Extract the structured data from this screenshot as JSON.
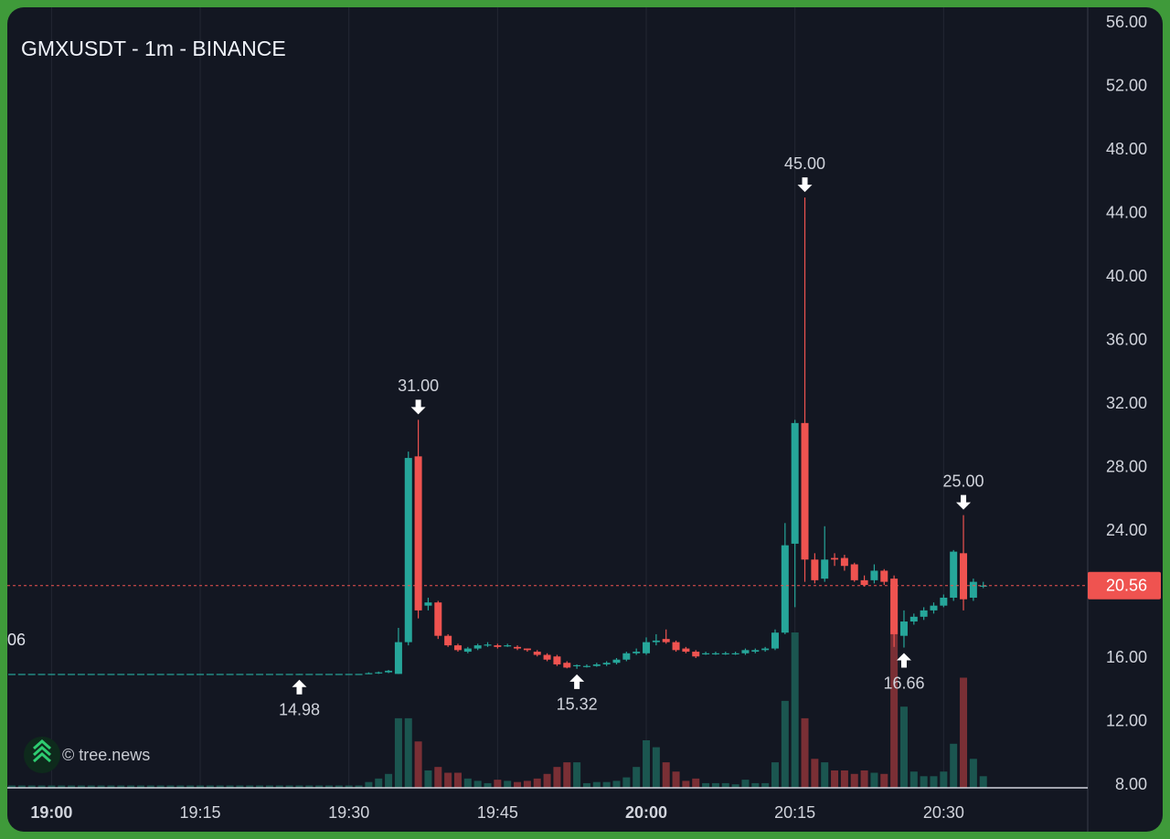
{
  "chart_data": {
    "type": "candlestick",
    "title": "GMXUSDT - 1m - BINANCE",
    "watermark": "© tree.news",
    "edge_label": "06",
    "x": [
      "18:56",
      "18:57",
      "18:58",
      "18:59",
      "19:00",
      "19:01",
      "19:02",
      "19:03",
      "19:04",
      "19:05",
      "19:06",
      "19:07",
      "19:08",
      "19:09",
      "19:10",
      "19:11",
      "19:12",
      "19:13",
      "19:14",
      "19:15",
      "19:16",
      "19:17",
      "19:18",
      "19:19",
      "19:20",
      "19:21",
      "19:22",
      "19:23",
      "19:24",
      "19:25",
      "19:26",
      "19:27",
      "19:28",
      "19:29",
      "19:30",
      "19:31",
      "19:32",
      "19:33",
      "19:34",
      "19:35",
      "19:36",
      "19:37",
      "19:38",
      "19:39",
      "19:40",
      "19:41",
      "19:42",
      "19:43",
      "19:44",
      "19:45",
      "19:46",
      "19:47",
      "19:48",
      "19:49",
      "19:50",
      "19:51",
      "19:52",
      "19:53",
      "19:54",
      "19:55",
      "19:56",
      "19:57",
      "19:58",
      "19:59",
      "20:00",
      "20:01",
      "20:02",
      "20:03",
      "20:04",
      "20:05",
      "20:06",
      "20:07",
      "20:08",
      "20:09",
      "20:10",
      "20:11",
      "20:12",
      "20:13",
      "20:14",
      "20:15",
      "20:16",
      "20:17",
      "20:18",
      "20:19",
      "20:20",
      "20:21",
      "20:22",
      "20:23",
      "20:24",
      "20:25",
      "20:26",
      "20:27",
      "20:28",
      "20:29",
      "20:30",
      "20:31",
      "20:32",
      "20:33",
      "20:34"
    ],
    "open": [
      15,
      15,
      15,
      15,
      15,
      15,
      15,
      15,
      15,
      15,
      15,
      15,
      15,
      15,
      15,
      15,
      15,
      15,
      15,
      15,
      15,
      15,
      15,
      15,
      15,
      15,
      15,
      15,
      15,
      15,
      15,
      15,
      15,
      15,
      15,
      15,
      15.0,
      15.05,
      15.1,
      15.0,
      17.0,
      28.7,
      19.3,
      19.5,
      17.4,
      16.8,
      16.4,
      16.6,
      16.8,
      16.8,
      16.8,
      16.7,
      16.6,
      16.4,
      16.2,
      16.1,
      15.7,
      15.5,
      15.5,
      15.5,
      15.6,
      15.7,
      15.9,
      16.3,
      16.3,
      17.0,
      17.2,
      17.0,
      16.6,
      16.4,
      16.3,
      16.3,
      16.3,
      16.3,
      16.3,
      16.4,
      16.5,
      16.6,
      17.6,
      23.2,
      30.8,
      22.2,
      21.0,
      22.3,
      22.3,
      21.9,
      20.9,
      20.9,
      21.5,
      21.0,
      17.4,
      18.3,
      18.6,
      19.0,
      19.3,
      19.8,
      22.6,
      19.8,
      20.56
    ],
    "high": [
      15,
      15,
      15,
      15,
      15,
      15,
      15,
      15,
      15,
      15,
      15,
      15,
      15,
      15,
      15,
      15,
      15,
      15,
      15,
      15,
      15,
      15,
      15,
      15,
      15,
      15,
      15,
      15,
      15,
      15,
      15,
      15,
      15,
      15,
      15,
      15,
      15.1,
      15.15,
      15.25,
      17.9,
      29.0,
      31.0,
      19.8,
      19.6,
      17.5,
      16.9,
      16.7,
      16.9,
      17.0,
      16.9,
      16.9,
      16.8,
      16.6,
      16.5,
      16.3,
      16.2,
      15.8,
      15.6,
      15.6,
      15.7,
      15.8,
      16.0,
      16.4,
      16.6,
      17.3,
      17.5,
      17.8,
      17.1,
      16.7,
      16.5,
      16.4,
      16.4,
      16.4,
      16.4,
      16.6,
      16.6,
      16.7,
      17.8,
      24.5,
      31.0,
      45.0,
      22.6,
      24.3,
      22.6,
      22.5,
      22.0,
      21.2,
      21.9,
      21.6,
      21.2,
      19.0,
      18.8,
      19.2,
      19.5,
      20.0,
      22.8,
      25.0,
      21.0,
      20.8
    ],
    "low": [
      15,
      15,
      15,
      15,
      15,
      15,
      15,
      15,
      15,
      15,
      15,
      15,
      15,
      15,
      15,
      15,
      15,
      15,
      15,
      15,
      15,
      15,
      15,
      15,
      15,
      15,
      15,
      15,
      15,
      14.98,
      15,
      15,
      15,
      15,
      15,
      15,
      14.99,
      15.0,
      15.05,
      15.0,
      16.8,
      18.5,
      19.0,
      17.2,
      16.7,
      16.4,
      16.3,
      16.5,
      16.7,
      16.6,
      16.7,
      16.5,
      16.4,
      16.1,
      15.8,
      15.5,
      15.35,
      15.32,
      15.4,
      15.45,
      15.5,
      15.6,
      15.8,
      16.2,
      16.2,
      16.8,
      16.9,
      16.4,
      16.3,
      16.0,
      16.2,
      16.2,
      16.2,
      16.2,
      16.2,
      16.3,
      16.4,
      16.5,
      17.5,
      19.2,
      20.8,
      20.7,
      20.8,
      21.8,
      21.5,
      20.8,
      20.5,
      20.7,
      20.6,
      16.7,
      16.66,
      18.1,
      18.4,
      18.8,
      19.2,
      19.6,
      19.0,
      19.6,
      20.4
    ],
    "close": [
      15,
      15,
      15,
      15,
      15,
      15,
      15,
      15,
      15,
      15,
      15,
      15,
      15,
      15,
      15,
      15,
      15,
      15,
      15,
      15,
      15,
      15,
      15,
      15,
      15,
      15,
      15,
      15,
      15,
      15,
      15,
      15,
      15,
      15,
      15,
      15,
      15.05,
      15.1,
      15.2,
      17.0,
      28.6,
      19.0,
      19.5,
      17.4,
      16.8,
      16.5,
      16.6,
      16.8,
      16.85,
      16.7,
      16.8,
      16.6,
      16.5,
      16.2,
      15.9,
      15.6,
      15.4,
      15.55,
      15.5,
      15.6,
      15.7,
      15.9,
      16.3,
      16.4,
      17.0,
      17.1,
      17.0,
      16.5,
      16.4,
      16.1,
      16.3,
      16.3,
      16.3,
      16.3,
      16.5,
      16.5,
      16.6,
      17.6,
      23.1,
      30.8,
      22.2,
      20.9,
      22.2,
      22.2,
      21.8,
      20.9,
      20.6,
      21.5,
      20.8,
      17.5,
      18.3,
      18.6,
      19.0,
      19.3,
      19.8,
      22.7,
      19.7,
      20.8,
      20.56
    ],
    "volume": [
      2,
      2,
      2,
      2,
      2,
      2,
      2,
      2,
      2,
      2,
      2,
      2,
      2,
      2,
      2,
      2,
      2,
      2,
      2,
      2,
      2,
      2,
      2,
      2,
      2,
      2,
      2,
      2,
      2,
      2,
      2,
      2,
      2,
      2,
      2,
      2,
      5,
      8,
      12,
      60,
      60,
      40,
      15,
      18,
      13,
      13,
      8,
      6,
      4,
      7,
      6,
      5,
      6,
      8,
      12,
      18,
      22,
      22,
      4,
      5,
      5,
      6,
      9,
      18,
      41,
      35,
      22,
      14,
      6,
      8,
      4,
      4,
      4,
      3,
      7,
      4,
      4,
      22,
      75,
      134,
      60,
      25,
      22,
      15,
      15,
      12,
      15,
      13,
      12,
      175,
      70,
      14,
      10,
      10,
      14,
      38,
      95,
      25,
      10
    ],
    "xlim": [
      "18:56",
      "20:45"
    ],
    "xticks": [
      "19:00",
      "19:15",
      "19:30",
      "19:45",
      "20:00",
      "20:15",
      "20:30"
    ],
    "ylim": [
      8,
      56
    ],
    "yticks": [
      {
        "value": 8,
        "label": "8.00"
      },
      {
        "value": 12,
        "label": "12.00"
      },
      {
        "value": 16,
        "label": "16.00"
      },
      {
        "value": 20,
        "label": "20.00"
      },
      {
        "value": 24,
        "label": "24.00"
      },
      {
        "value": 28,
        "label": "28.00"
      },
      {
        "value": 32,
        "label": "32.00"
      },
      {
        "value": 36,
        "label": "36.00"
      },
      {
        "value": 40,
        "label": "40.00"
      },
      {
        "value": 44,
        "label": "44.00"
      },
      {
        "value": 48,
        "label": "48.00"
      },
      {
        "value": 52,
        "label": "52.00"
      },
      {
        "value": 56,
        "label": "56.00"
      }
    ],
    "grid": true,
    "up_color": "#26a69a",
    "down_color": "#ef5350",
    "up_volume_color": "#1b5650",
    "down_volume_color": "#7a2f35",
    "last_price": {
      "value": 20.56,
      "label": "20.56"
    },
    "annotations": [
      {
        "label": "31.00",
        "value": 31,
        "x": "19:37",
        "dir": "down"
      },
      {
        "label": "45.00",
        "value": 45,
        "x": "20:16",
        "dir": "down"
      },
      {
        "label": "25.00",
        "value": 25,
        "x": "20:32",
        "dir": "down"
      },
      {
        "label": "14.98",
        "value": 14.98,
        "x": "19:25",
        "dir": "up"
      },
      {
        "label": "15.32",
        "value": 15.32,
        "x": "19:53",
        "dir": "up"
      },
      {
        "label": "16.66",
        "value": 16.66,
        "x": "20:26",
        "dir": "up"
      }
    ]
  }
}
